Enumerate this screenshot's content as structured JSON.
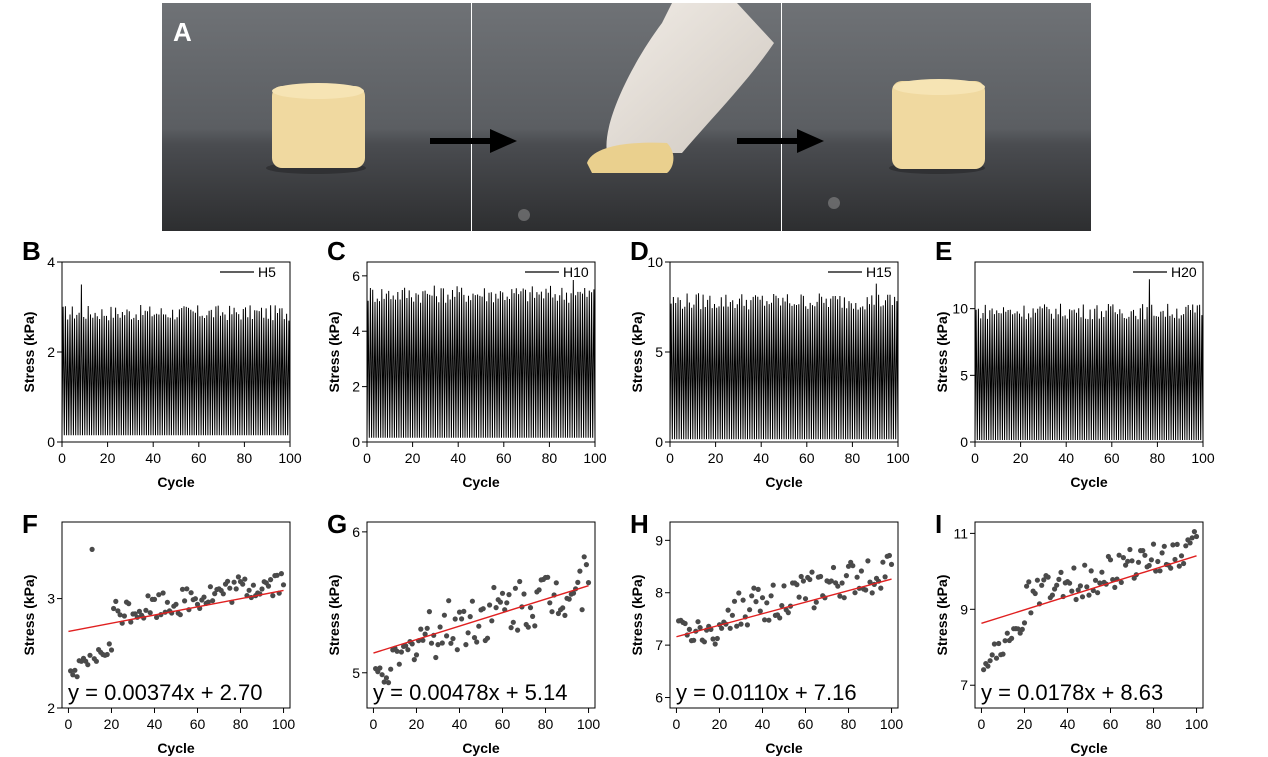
{
  "panel_a": {
    "label": "A"
  },
  "chart_data": [
    {
      "panel": "B",
      "type": "line",
      "legend": "H5",
      "xlabel": "Cycle",
      "ylabel": "Stress (kPa)",
      "xlim": [
        0,
        100
      ],
      "ylim": [
        0,
        4
      ],
      "xticks": [
        0,
        20,
        40,
        60,
        80,
        100
      ],
      "yticks": [
        0,
        2,
        4
      ],
      "series": [
        {
          "name": "H5",
          "cycles": 100,
          "peak_typical": 2.9,
          "peak_max": 3.5,
          "valley": 0.15
        }
      ]
    },
    {
      "panel": "C",
      "type": "line",
      "legend": "H10",
      "xlabel": "Cycle",
      "ylabel": "Stress (kPa)",
      "xlim": [
        0,
        100
      ],
      "ylim": [
        0,
        6.5
      ],
      "xticks": [
        0,
        20,
        40,
        60,
        80,
        100
      ],
      "yticks": [
        0,
        2,
        4,
        6
      ],
      "series": [
        {
          "name": "H10",
          "cycles": 100,
          "peak_typical": 5.4,
          "peak_max": 5.85,
          "valley": 0.15
        }
      ]
    },
    {
      "panel": "D",
      "type": "line",
      "legend": "H15",
      "xlabel": "Cycle",
      "ylabel": "Stress (kPa)",
      "xlim": [
        0,
        100
      ],
      "ylim": [
        0,
        10
      ],
      "xticks": [
        0,
        20,
        40,
        60,
        80,
        100
      ],
      "yticks": [
        0,
        5,
        10
      ],
      "series": [
        {
          "name": "H15",
          "cycles": 100,
          "peak_typical": 7.9,
          "peak_max": 8.8,
          "valley": 0.15
        }
      ]
    },
    {
      "panel": "E",
      "type": "line",
      "legend": "H20",
      "xlabel": "Cycle",
      "ylabel": "Stress (kPa)",
      "xlim": [
        0,
        100
      ],
      "ylim": [
        0,
        13.5
      ],
      "xticks": [
        0,
        20,
        40,
        60,
        80,
        100
      ],
      "yticks": [
        0,
        5,
        10
      ],
      "series": [
        {
          "name": "H20",
          "cycles": 100,
          "peak_typical": 9.9,
          "peak_max": 12.2,
          "valley": 0.15
        }
      ]
    },
    {
      "panel": "F",
      "type": "scatter",
      "xlabel": "Cycle",
      "ylabel": "Stress (kPa)",
      "xlim": [
        -3,
        103
      ],
      "ylim": [
        2,
        3.7
      ],
      "xticks": [
        0,
        20,
        40,
        60,
        80,
        100
      ],
      "yticks": [
        2,
        3
      ],
      "fit": {
        "slope": 0.00374,
        "intercept": 2.7,
        "label": "y = 0.00374x + 2.70",
        "color": "#e02020"
      },
      "points": {
        "count": 100,
        "early_start": 2.3,
        "early_end": 2.55,
        "plateau": 2.97,
        "spread": 0.14,
        "outlier_cycle": 11,
        "outlier_value": 3.45
      }
    },
    {
      "panel": "G",
      "type": "scatter",
      "xlabel": "Cycle",
      "ylabel": "Stress (kPa)",
      "xlim": [
        -3,
        103
      ],
      "ylim": [
        4.75,
        6.07
      ],
      "xticks": [
        0,
        20,
        40,
        60,
        80,
        100
      ],
      "yticks": [
        5,
        6
      ],
      "fit": {
        "slope": 0.00478,
        "intercept": 5.14,
        "label": "y = 0.00478x + 5.14",
        "color": "#e02020"
      },
      "points": {
        "count": 100,
        "early_start": 4.95,
        "early_end": 5.2,
        "plateau": 5.4,
        "spread": 0.22
      }
    },
    {
      "panel": "H",
      "type": "scatter",
      "xlabel": "Cycle",
      "ylabel": "Stress (kPa)",
      "xlim": [
        -3,
        103
      ],
      "ylim": [
        5.8,
        9.35
      ],
      "xticks": [
        0,
        20,
        40,
        60,
        80,
        100
      ],
      "yticks": [
        6,
        7,
        8,
        9
      ],
      "fit": {
        "slope": 0.011,
        "intercept": 7.16,
        "label": "y = 0.0110x + 7.16",
        "color": "#e02020"
      },
      "points": {
        "count": 100,
        "early_start": 7.3,
        "early_end": 7.2,
        "plateau": 7.9,
        "spread": 0.4
      }
    },
    {
      "panel": "I",
      "type": "scatter",
      "xlabel": "Cycle",
      "ylabel": "Stress (kPa)",
      "xlim": [
        -3,
        103
      ],
      "ylim": [
        6.4,
        11.3
      ],
      "xticks": [
        0,
        20,
        40,
        60,
        80,
        100
      ],
      "yticks": [
        7,
        9,
        11
      ],
      "fit": {
        "slope": 0.0178,
        "intercept": 8.63,
        "label": "y = 0.0178x + 8.63",
        "color": "#e02020"
      },
      "points": {
        "count": 100,
        "early_start": 7.6,
        "early_end": 8.5,
        "plateau": 9.8,
        "spread": 0.5
      }
    }
  ]
}
